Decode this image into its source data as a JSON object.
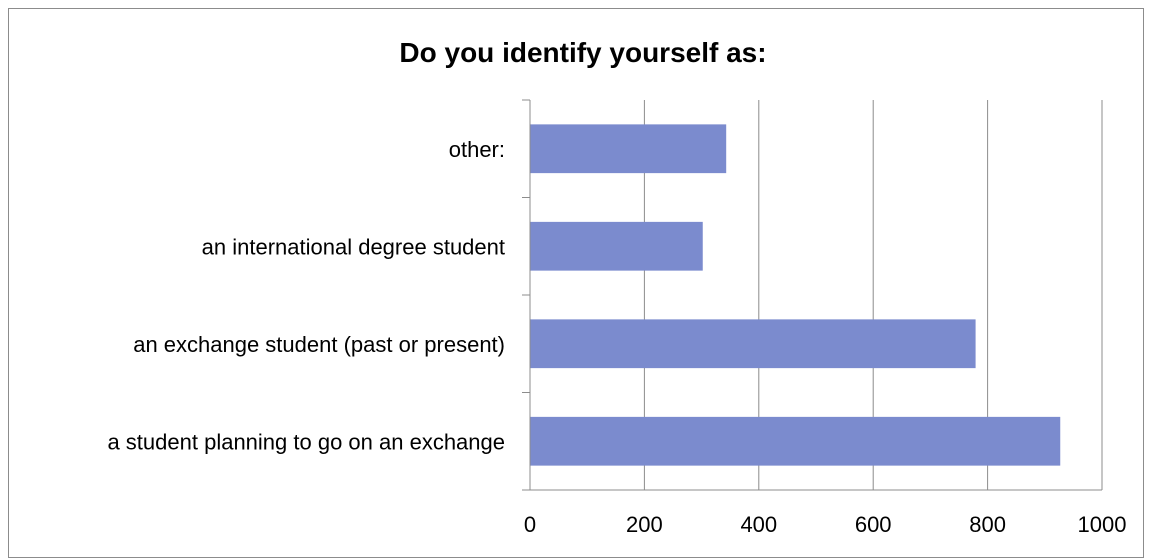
{
  "chart_data": {
    "type": "bar",
    "orientation": "horizontal",
    "title": "Do you identify yourself as:",
    "categories": [
      "a student planning to go on an exchange",
      "an exchange student (past or present)",
      "an international degree student",
      "other:"
    ],
    "values": [
      927,
      779,
      302,
      343
    ],
    "xlim": [
      0,
      1000
    ],
    "xticks": [
      "0",
      "200",
      "400",
      "600",
      "800",
      "1000"
    ],
    "grid": true,
    "legend": "none",
    "bar_color": "#7b8bce",
    "grid_color": "#8c8c8c"
  }
}
